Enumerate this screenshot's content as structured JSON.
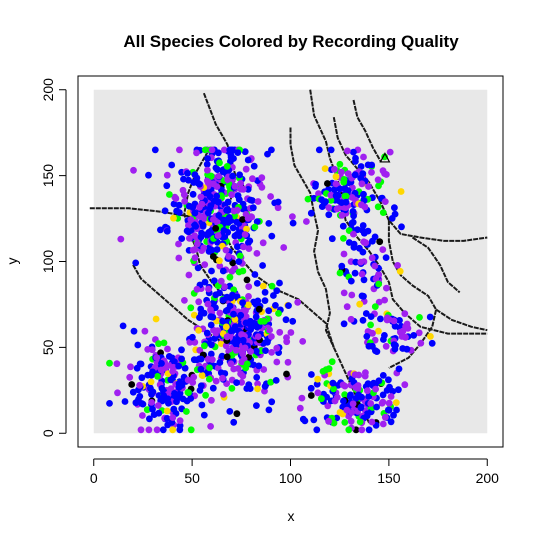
{
  "chart_data": {
    "type": "scatter",
    "title": "All Species Colored by Recording Quality",
    "xlabel": "x",
    "ylabel": "y",
    "xlim": [
      -8,
      208
    ],
    "ylim": [
      -8,
      208
    ],
    "xticks": [
      0,
      50,
      100,
      150,
      200
    ],
    "yticks": [
      0,
      50,
      100,
      150,
      200
    ],
    "legend": "none",
    "grid": false,
    "background_region": {
      "x": [
        0,
        200
      ],
      "y": [
        0,
        200
      ],
      "color": "#e8e8e8"
    },
    "colors": {
      "purple": "#a020f0",
      "blue": "#0000ff",
      "green": "#00ff00",
      "gold": "#ffd700",
      "black": "#000000",
      "stream": "#1a1a1a"
    },
    "clusters": [
      {
        "label": "upper-left",
        "cx": 62,
        "cy": 130,
        "sx": 12,
        "sy": 20,
        "n": 420
      },
      {
        "label": "middle",
        "cx": 73,
        "cy": 58,
        "sx": 12,
        "sy": 16,
        "n": 380
      },
      {
        "label": "lower-left",
        "cx": 38,
        "cy": 28,
        "sx": 11,
        "sy": 14,
        "n": 200
      },
      {
        "label": "bottom-center",
        "cx": 134,
        "cy": 20,
        "sx": 11,
        "sy": 9,
        "n": 170
      },
      {
        "label": "upper-right",
        "cx": 128,
        "cy": 140,
        "sx": 9,
        "sy": 12,
        "n": 140
      },
      {
        "label": "right-mid",
        "cx": 140,
        "cy": 100,
        "sx": 8,
        "sy": 18,
        "n": 80
      },
      {
        "label": "right-lower",
        "cx": 152,
        "cy": 58,
        "sx": 8,
        "sy": 8,
        "n": 60
      }
    ],
    "quality_mix": {
      "blue": 0.46,
      "purple": 0.36,
      "green": 0.11,
      "gold": 0.04,
      "black": 0.03
    },
    "marked_point": {
      "x": 148,
      "y": 160,
      "shape": "triangle"
    },
    "streams": [
      [
        [
          -2,
          131
        ],
        [
          18,
          131
        ],
        [
          34,
          129
        ],
        [
          50,
          126
        ]
      ],
      [
        [
          58,
          164
        ],
        [
          52,
          152
        ],
        [
          48,
          140
        ],
        [
          46,
          128
        ],
        [
          48,
          118
        ],
        [
          52,
          108
        ],
        [
          54,
          98
        ],
        [
          60,
          88
        ],
        [
          66,
          80
        ],
        [
          72,
          72
        ]
      ],
      [
        [
          110,
          200
        ],
        [
          112,
          185
        ],
        [
          118,
          170
        ],
        [
          120,
          160
        ],
        [
          124,
          148
        ],
        [
          126,
          136
        ],
        [
          128,
          124
        ],
        [
          134,
          114
        ],
        [
          140,
          106
        ],
        [
          146,
          96
        ],
        [
          150,
          88
        ],
        [
          152,
          78
        ],
        [
          158,
          70
        ],
        [
          166,
          62
        ],
        [
          180,
          58
        ],
        [
          200,
          58
        ]
      ],
      [
        [
          56,
          198
        ],
        [
          62,
          180
        ],
        [
          68,
          168
        ],
        [
          72,
          150
        ],
        [
          70,
          138
        ],
        [
          68,
          128
        ],
        [
          66,
          118
        ],
        [
          70,
          108
        ],
        [
          76,
          100
        ],
        [
          82,
          92
        ],
        [
          92,
          84
        ],
        [
          104,
          78
        ],
        [
          112,
          70
        ],
        [
          118,
          64
        ],
        [
          122,
          50
        ],
        [
          126,
          40
        ],
        [
          130,
          30
        ],
        [
          134,
          20
        ],
        [
          140,
          6
        ]
      ],
      [
        [
          100,
          178
        ],
        [
          100,
          168
        ],
        [
          102,
          156
        ],
        [
          106,
          148
        ],
        [
          110,
          140
        ],
        [
          112,
          128
        ],
        [
          114,
          118
        ],
        [
          112,
          106
        ],
        [
          114,
          94
        ],
        [
          118,
          84
        ],
        [
          120,
          70
        ],
        [
          118,
          60
        ],
        [
          122,
          50
        ]
      ],
      [
        [
          122,
          184
        ],
        [
          124,
          172
        ],
        [
          128,
          162
        ],
        [
          134,
          154
        ],
        [
          140,
          146
        ],
        [
          146,
          134
        ],
        [
          150,
          124
        ],
        [
          156,
          116
        ],
        [
          166,
          114
        ],
        [
          178,
          112
        ],
        [
          188,
          112
        ],
        [
          200,
          114
        ]
      ],
      [
        [
          150,
          124
        ],
        [
          150,
          112
        ],
        [
          152,
          100
        ],
        [
          156,
          92
        ],
        [
          162,
          86
        ],
        [
          170,
          80
        ],
        [
          174,
          72
        ],
        [
          172,
          62
        ],
        [
          166,
          52
        ],
        [
          160,
          44
        ],
        [
          150,
          38
        ]
      ],
      [
        [
          20,
          98
        ],
        [
          24,
          90
        ],
        [
          30,
          84
        ],
        [
          36,
          78
        ],
        [
          42,
          72
        ],
        [
          48,
          66
        ],
        [
          56,
          60
        ],
        [
          64,
          54
        ]
      ],
      [
        [
          162,
          114
        ],
        [
          170,
          108
        ],
        [
          176,
          98
        ],
        [
          180,
          88
        ],
        [
          186,
          82
        ]
      ],
      [
        [
          132,
          194
        ],
        [
          134,
          184
        ],
        [
          138,
          176
        ],
        [
          142,
          166
        ],
        [
          146,
          158
        ]
      ],
      [
        [
          174,
          72
        ],
        [
          182,
          66
        ],
        [
          192,
          62
        ],
        [
          200,
          60
        ]
      ]
    ]
  }
}
